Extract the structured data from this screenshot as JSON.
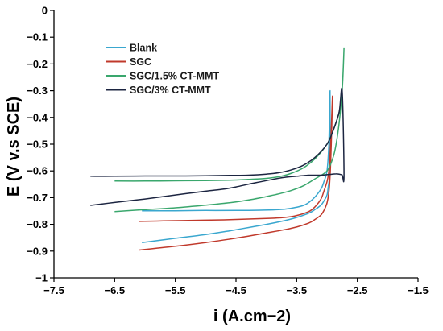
{
  "chart_data": {
    "type": "line",
    "title": "",
    "xlabel": "i (A.cm−2)",
    "ylabel": "E (V v.s SCE)",
    "xlim": [
      -7.5,
      -1.5
    ],
    "ylim": [
      -1,
      0
    ],
    "x_ticks": [
      -7.5,
      -6.5,
      -5.5,
      -4.5,
      -3.5,
      -2.5,
      -1.5
    ],
    "x_tick_labels": [
      "−7.5",
      "−6.5",
      "−5.5",
      "−4.5",
      "−3.5",
      "−2.5",
      "−1.5"
    ],
    "y_ticks": [
      0,
      -0.1,
      -0.2,
      -0.3,
      -0.4,
      -0.5,
      -0.6,
      -0.7,
      -0.8,
      -0.9,
      -1
    ],
    "y_tick_labels": [
      "0",
      "−0.1",
      "−0.2",
      "−0.3",
      "−0.4",
      "−0.5",
      "−0.6",
      "−0.7",
      "−0.8",
      "−0.9",
      "−1"
    ],
    "grid": false,
    "legend_position": "top-left",
    "series": [
      {
        "name": "Blank",
        "color": "#3aa7cf",
        "x": [
          -6.05,
          -5.5,
          -5.0,
          -4.6,
          -4.3,
          -4.0,
          -3.7,
          -3.5,
          -3.3,
          -3.2,
          -3.1,
          -3.05,
          -3.0,
          -2.98,
          -2.96,
          -2.95,
          -2.95,
          -2.97,
          -3.0,
          -3.05,
          -3.1,
          -3.2,
          -3.3,
          -3.4,
          -3.6,
          -3.8,
          -4.1,
          -4.5,
          -5.0,
          -5.5,
          -6.05
        ],
        "y": [
          -0.868,
          -0.852,
          -0.838,
          -0.824,
          -0.812,
          -0.8,
          -0.786,
          -0.774,
          -0.758,
          -0.745,
          -0.728,
          -0.712,
          -0.69,
          -0.66,
          -0.62,
          -0.5,
          -0.3,
          -0.5,
          -0.6,
          -0.64,
          -0.668,
          -0.698,
          -0.718,
          -0.73,
          -0.74,
          -0.745,
          -0.747,
          -0.748,
          -0.748,
          -0.749,
          -0.749
        ]
      },
      {
        "name": "SGC",
        "color": "#c0392b",
        "x": [
          -6.1,
          -5.5,
          -5.0,
          -4.6,
          -4.3,
          -4.0,
          -3.7,
          -3.5,
          -3.3,
          -3.2,
          -3.1,
          -3.05,
          -3.0,
          -2.97,
          -2.95,
          -2.93,
          -2.91,
          -2.94,
          -2.97,
          -3.0,
          -3.05,
          -3.1,
          -3.2,
          -3.3,
          -3.5,
          -3.7,
          -4.0,
          -4.3,
          -4.7,
          -5.2,
          -5.7,
          -6.1
        ],
        "y": [
          -0.896,
          -0.882,
          -0.868,
          -0.855,
          -0.844,
          -0.832,
          -0.82,
          -0.81,
          -0.795,
          -0.782,
          -0.765,
          -0.748,
          -0.72,
          -0.68,
          -0.62,
          -0.5,
          -0.32,
          -0.5,
          -0.6,
          -0.64,
          -0.675,
          -0.705,
          -0.735,
          -0.752,
          -0.767,
          -0.774,
          -0.778,
          -0.78,
          -0.783,
          -0.785,
          -0.787,
          -0.789
        ]
      },
      {
        "name": "SGC/1.5% CT-MMT",
        "color": "#3aa76d",
        "x": [
          -6.5,
          -6.0,
          -5.5,
          -5.0,
          -4.5,
          -4.2,
          -4.0,
          -3.8,
          -3.6,
          -3.4,
          -3.2,
          -3.0,
          -2.9,
          -2.85,
          -2.8,
          -2.75,
          -2.72,
          -2.75,
          -2.8,
          -2.9,
          -3.0,
          -3.2,
          -3.4,
          -3.6,
          -3.8,
          -4.0,
          -4.3,
          -4.6,
          -5.0,
          -5.5,
          -6.0,
          -6.5
        ],
        "y": [
          -0.752,
          -0.745,
          -0.738,
          -0.728,
          -0.716,
          -0.705,
          -0.696,
          -0.686,
          -0.674,
          -0.657,
          -0.63,
          -0.6,
          -0.55,
          -0.5,
          -0.42,
          -0.3,
          -0.14,
          -0.3,
          -0.38,
          -0.45,
          -0.5,
          -0.555,
          -0.59,
          -0.61,
          -0.622,
          -0.628,
          -0.632,
          -0.635,
          -0.636,
          -0.637,
          -0.638,
          -0.638
        ]
      },
      {
        "name": "SGC/3% CT-MMT",
        "color": "#1c2541",
        "x": [
          -6.9,
          -6.5,
          -6.0,
          -5.5,
          -5.0,
          -4.7,
          -4.5,
          -4.3,
          -4.1,
          -3.9,
          -3.7,
          -3.5,
          -3.3,
          -3.1,
          -2.95,
          -2.85,
          -2.8,
          -2.75,
          -2.72,
          -2.75,
          -2.8,
          -2.9,
          -3.0,
          -3.2,
          -3.4,
          -3.6,
          -3.8,
          -4.0,
          -4.3,
          -4.6,
          -5.0,
          -5.5,
          -6.0,
          -6.5,
          -6.9
        ],
        "y": [
          -0.729,
          -0.718,
          -0.705,
          -0.69,
          -0.676,
          -0.668,
          -0.66,
          -0.65,
          -0.641,
          -0.632,
          -0.624,
          -0.62,
          -0.616,
          -0.616,
          -0.613,
          -0.611,
          -0.612,
          -0.615,
          -0.618,
          -0.3,
          -0.38,
          -0.45,
          -0.5,
          -0.55,
          -0.58,
          -0.597,
          -0.607,
          -0.612,
          -0.616,
          -0.617,
          -0.618,
          -0.619,
          -0.619,
          -0.62,
          -0.62
        ]
      }
    ]
  }
}
